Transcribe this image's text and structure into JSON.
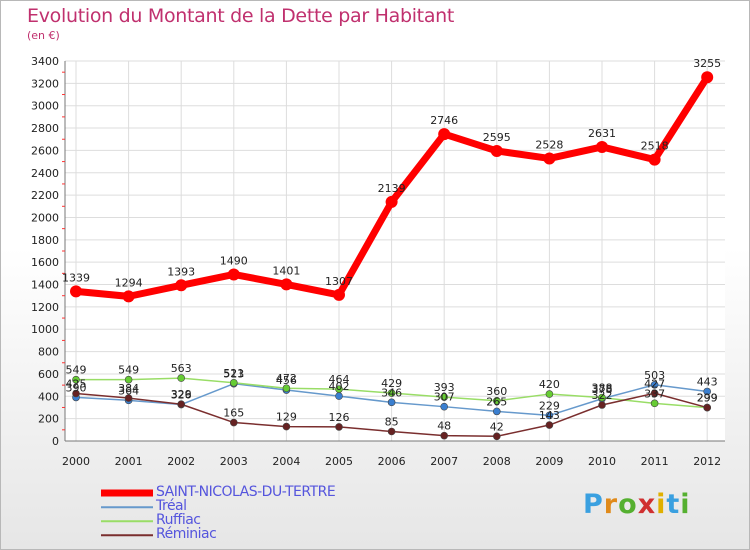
{
  "title": "Evolution du Montant de la Dette par Habitant",
  "subtitle": "(en €)",
  "chart_data": {
    "type": "line",
    "x": [
      "2000",
      "2001",
      "2002",
      "2003",
      "2004",
      "2005",
      "2006",
      "2007",
      "2008",
      "2009",
      "2010",
      "2011",
      "2012"
    ],
    "ylim": [
      0,
      3400
    ],
    "yticks": [
      0,
      200,
      400,
      600,
      800,
      1000,
      1200,
      1400,
      1600,
      1800,
      2000,
      2200,
      2400,
      2600,
      2800,
      3000,
      3200,
      3400
    ],
    "grid": true,
    "legend": "bottom-left",
    "series": [
      {
        "name": "SAINT-NICOLAS-DU-TERTRE",
        "color": "#ff0000",
        "marker": "#ff0000",
        "width": 7,
        "radius": 6,
        "values": [
          1339,
          1294,
          1393,
          1490,
          1401,
          1307,
          2139,
          2746,
          2595,
          2528,
          2631,
          2518,
          3255
        ],
        "labels": [
          "1339",
          "1294",
          "1393",
          "1490",
          "1401",
          "1307",
          "2139",
          "2746",
          "2595",
          "2528",
          "2631",
          "2518",
          "3255"
        ]
      },
      {
        "name": "Tréal",
        "color": "#6699cc",
        "marker": "#3a7fd0",
        "width": 1.5,
        "radius": 3.5,
        "values": [
          390,
          364,
          326,
          513,
          456,
          402,
          346,
          307,
          265,
          229,
          378,
          503,
          443
        ],
        "labels": [
          "390",
          "364",
          "326",
          "513",
          "456",
          "402",
          "346",
          "307",
          "265",
          "229",
          "378",
          "503",
          "443"
        ]
      },
      {
        "name": "Ruffiac",
        "color": "#99dd66",
        "marker": "#66cc33",
        "width": 1.5,
        "radius": 3.5,
        "values": [
          549,
          549,
          563,
          521,
          472,
          464,
          429,
          393,
          360,
          420,
          388,
          337,
          299
        ],
        "labels": [
          "549",
          "549",
          "563",
          "521",
          "472",
          "464",
          "429",
          "393",
          "360",
          "420",
          "388",
          "337",
          "299"
        ]
      },
      {
        "name": "Réminiac",
        "color": "#7a2e2e",
        "marker": "#662222",
        "width": 1.5,
        "radius": 3.5,
        "values": [
          425,
          384,
          329,
          165,
          129,
          126,
          85,
          48,
          42,
          143,
          322,
          427,
          299
        ],
        "labels": [
          "425",
          "384",
          "329",
          "165",
          "129",
          "126",
          "85",
          "48",
          "42",
          "143",
          "322",
          "427",
          "299"
        ]
      }
    ]
  },
  "legend": {
    "items": [
      "SAINT-NICOLAS-DU-TERTRE",
      "Tréal",
      "Ruffiac",
      "Réminiac"
    ]
  },
  "logo": {
    "letters": [
      "P",
      "r",
      "o",
      "x",
      "i",
      "t",
      "i"
    ],
    "colors": [
      "#3aa0e0",
      "#e08a1a",
      "#55b030",
      "#d03030",
      "#e0b000",
      "#3aa0e0",
      "#55b030"
    ]
  }
}
